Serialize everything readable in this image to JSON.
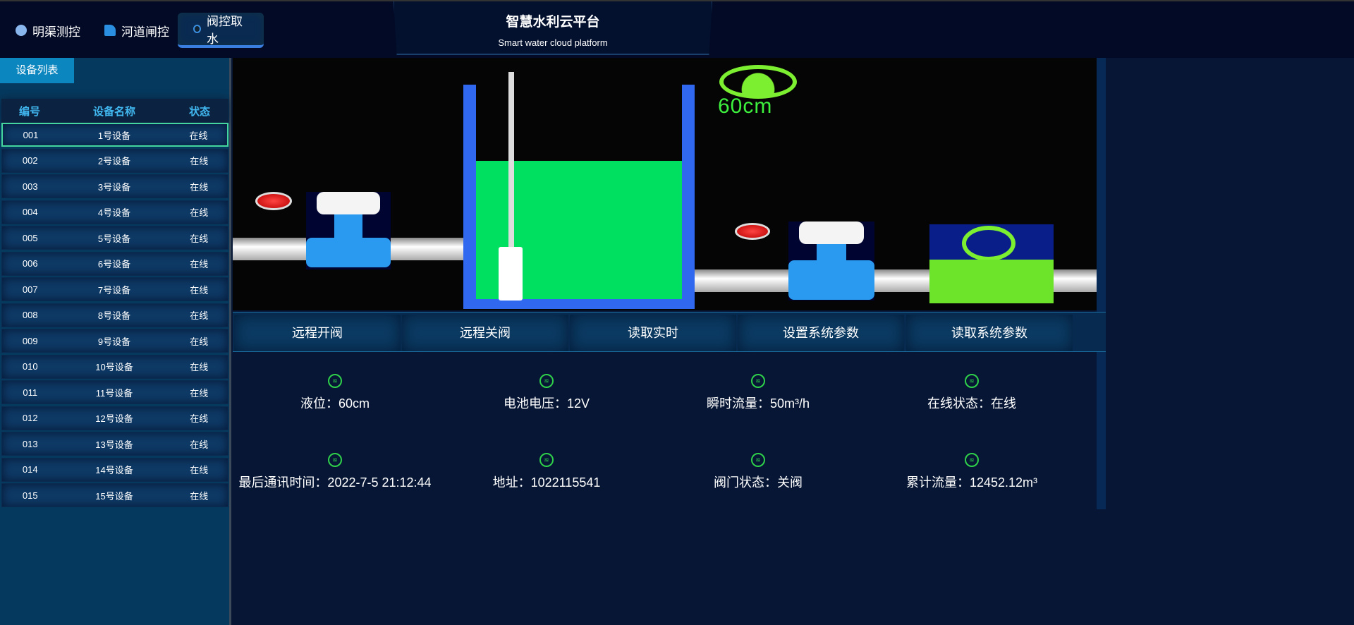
{
  "header": {
    "title": "智慧水利云平台",
    "subtitle": "Smart water cloud platform",
    "nav": [
      {
        "label": "明渠测控",
        "icon": "channel-icon"
      },
      {
        "label": "河道闸控",
        "icon": "river-icon"
      },
      {
        "label": "阀控取水",
        "icon": "valve-icon",
        "active": true
      }
    ]
  },
  "sidebar": {
    "tab": "设备列表",
    "columns": [
      "编号",
      "设备名称",
      "状态"
    ],
    "rows": [
      [
        "001",
        "1号设备",
        "在线"
      ],
      [
        "002",
        "2号设备",
        "在线"
      ],
      [
        "003",
        "3号设备",
        "在线"
      ],
      [
        "004",
        "4号设备",
        "在线"
      ],
      [
        "005",
        "5号设备",
        "在线"
      ],
      [
        "006",
        "6号设备",
        "在线"
      ],
      [
        "007",
        "7号设备",
        "在线"
      ],
      [
        "008",
        "8号设备",
        "在线"
      ],
      [
        "009",
        "9号设备",
        "在线"
      ],
      [
        "010",
        "10号设备",
        "在线"
      ],
      [
        "011",
        "11号设备",
        "在线"
      ],
      [
        "012",
        "12号设备",
        "在线"
      ],
      [
        "013",
        "13号设备",
        "在线"
      ],
      [
        "014",
        "14号设备",
        "在线"
      ],
      [
        "015",
        "15号设备",
        "在线"
      ]
    ],
    "selected": 0
  },
  "scene": {
    "level_label": "60cm",
    "water_color": "#00e060",
    "tank_color": "#3068f0"
  },
  "buttons": [
    "远程开阀",
    "远程关阀",
    "读取实时",
    "设置系统参数",
    "读取系统参数"
  ],
  "info": [
    [
      "液位：60cm",
      "电池电压：12V",
      "瞬时流量：50m³/h",
      "在线状态：在线"
    ],
    [
      "最后通讯时间：2022-7-5 21:12:44",
      "地址：1022115541",
      "阀门状态：关阀",
      "累计流量：12452.12m³"
    ]
  ]
}
